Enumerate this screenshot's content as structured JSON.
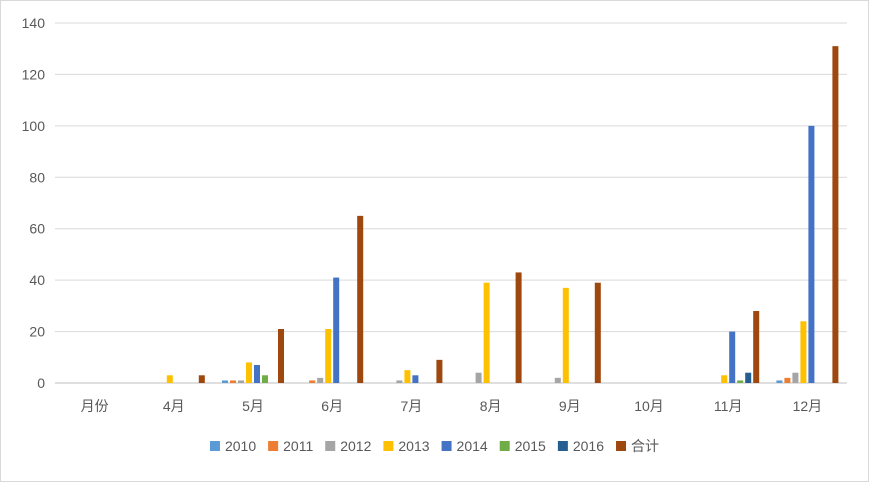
{
  "chart_data": {
    "type": "bar",
    "title": "",
    "xlabel": "",
    "ylabel": "",
    "ylim": [
      0,
      140
    ],
    "yticks": [
      0,
      20,
      40,
      60,
      80,
      100,
      120,
      140
    ],
    "grid": true,
    "legend_position": "bottom",
    "categories": [
      "月份",
      "4月",
      "5月",
      "6月",
      "7月",
      "8月",
      "9月",
      "10月",
      "11月",
      "12月"
    ],
    "series": [
      {
        "name": "2010",
        "color": "#5B9BD5",
        "values": [
          0,
          0,
          1,
          0,
          0,
          0,
          0,
          0,
          0,
          1
        ]
      },
      {
        "name": "2011",
        "color": "#ED7D31",
        "values": [
          0,
          0,
          1,
          1,
          0,
          0,
          0,
          0,
          0,
          2
        ]
      },
      {
        "name": "2012",
        "color": "#A5A5A5",
        "values": [
          0,
          0,
          1,
          2,
          1,
          4,
          2,
          0,
          0,
          4
        ]
      },
      {
        "name": "2013",
        "color": "#FFC000",
        "values": [
          0,
          3,
          8,
          21,
          5,
          39,
          37,
          0,
          3,
          24
        ]
      },
      {
        "name": "2014",
        "color": "#4472C4",
        "values": [
          0,
          0,
          7,
          41,
          3,
          0,
          0,
          0,
          20,
          100
        ]
      },
      {
        "name": "2015",
        "color": "#70AD47",
        "values": [
          0,
          0,
          3,
          0,
          0,
          0,
          0,
          0,
          1,
          0
        ]
      },
      {
        "name": "2016",
        "color": "#255E91",
        "values": [
          0,
          0,
          0,
          0,
          0,
          0,
          0,
          0,
          4,
          0
        ]
      },
      {
        "name": "合计",
        "color": "#9E480E",
        "values": [
          0,
          3,
          21,
          65,
          9,
          43,
          39,
          0,
          28,
          131
        ]
      }
    ]
  }
}
